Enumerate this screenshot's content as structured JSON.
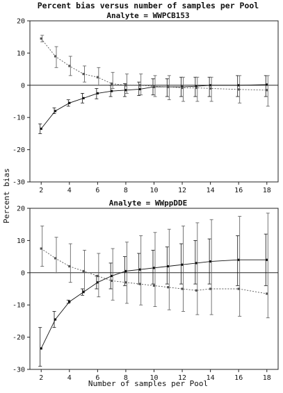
{
  "figure": {
    "title": "Percent bias versus number of samples per Pool",
    "xlabel": "Number of samples per Pool",
    "ylabel": "Percent bias"
  },
  "chart_data": [
    {
      "type": "line",
      "subtitle": "Analyte = WWPCB153",
      "x": [
        2,
        3,
        4,
        5,
        6,
        7,
        8,
        9,
        10,
        11,
        12,
        13,
        14,
        16,
        18
      ],
      "xticks": [
        2,
        4,
        6,
        8,
        10,
        12,
        14,
        16,
        18
      ],
      "yticks": [
        20,
        10,
        0,
        -10,
        -20,
        -30
      ],
      "xlim": [
        1.2,
        18.8
      ],
      "ylim": [
        -30,
        20
      ],
      "reference_line": 0,
      "series": [
        {
          "style": "solid",
          "values": [
            -13.5,
            -8.0,
            -5.5,
            -4.0,
            -2.5,
            -1.8,
            -1.5,
            -1.2,
            -0.5,
            -0.5,
            -0.5,
            -0.3,
            0.0,
            0.0,
            0.2
          ],
          "err_low": [
            -15.0,
            -8.8,
            -6.5,
            -5.5,
            -4.2,
            -3.5,
            -3.5,
            -3.2,
            -3.0,
            -3.5,
            -3.5,
            -3.5,
            -3.5,
            -3.5,
            -3.5
          ],
          "err_high": [
            -12.0,
            -7.0,
            -4.5,
            -2.5,
            -1.0,
            0.0,
            0.5,
            1.0,
            2.0,
            2.0,
            2.5,
            2.5,
            2.5,
            3.0,
            3.0
          ]
        },
        {
          "style": "dotted",
          "values": [
            14.5,
            9.0,
            6.0,
            3.5,
            2.5,
            0.5,
            0.0,
            0.0,
            -0.3,
            -0.5,
            -0.8,
            -0.8,
            -1.0,
            -1.3,
            -1.5
          ],
          "err_low": [
            13.5,
            5.5,
            3.0,
            1.0,
            0.0,
            -1.0,
            -2.5,
            -3.0,
            -3.5,
            -4.5,
            -5.0,
            -5.0,
            -5.0,
            -5.5,
            -6.5
          ],
          "err_high": [
            15.5,
            12.0,
            9.0,
            6.0,
            5.5,
            4.0,
            3.5,
            3.5,
            3.0,
            3.0,
            2.5,
            2.5,
            2.5,
            3.0,
            3.0
          ]
        }
      ]
    },
    {
      "type": "line",
      "subtitle": "Analyte = WWppDDE",
      "x": [
        2,
        3,
        4,
        5,
        6,
        7,
        8,
        9,
        10,
        11,
        12,
        13,
        14,
        16,
        18
      ],
      "xticks": [
        2,
        4,
        6,
        8,
        10,
        12,
        14,
        16,
        18
      ],
      "yticks": [
        20,
        10,
        0,
        -10,
        -20,
        -30
      ],
      "xlim": [
        1.2,
        18.8
      ],
      "ylim": [
        -30,
        20
      ],
      "reference_line": 0,
      "series": [
        {
          "style": "solid",
          "values": [
            -23.5,
            -14.5,
            -9.0,
            -6.0,
            -3.0,
            -1.0,
            0.5,
            1.0,
            1.5,
            2.0,
            2.5,
            3.0,
            3.5,
            4.0,
            4.0
          ],
          "err_low": [
            -29.0,
            -17.0,
            -9.5,
            -7.0,
            -5.0,
            -5.0,
            -4.0,
            -3.5,
            -3.5,
            -3.5,
            -3.5,
            -3.5,
            -3.5,
            -4.0,
            -4.0
          ],
          "err_high": [
            -17.0,
            -12.0,
            -8.5,
            -5.0,
            -1.0,
            3.0,
            5.0,
            6.0,
            7.0,
            8.0,
            9.0,
            10.0,
            10.5,
            11.5,
            12.0
          ]
        },
        {
          "style": "dotted",
          "values": [
            7.5,
            4.5,
            2.0,
            0.5,
            -1.0,
            -2.5,
            -3.0,
            -3.5,
            -4.0,
            -4.5,
            -5.0,
            -5.5,
            -5.0,
            -5.0,
            -6.5
          ],
          "err_low": [
            2.0,
            0.0,
            -3.0,
            -5.5,
            -7.5,
            -8.5,
            -9.5,
            -10.0,
            -10.5,
            -11.5,
            -12.0,
            -13.0,
            -13.0,
            -13.5,
            -14.0
          ],
          "err_high": [
            14.5,
            11.0,
            9.0,
            7.0,
            6.0,
            7.5,
            9.5,
            11.5,
            12.5,
            13.5,
            14.5,
            15.5,
            16.5,
            17.5,
            18.5
          ]
        }
      ]
    }
  ]
}
